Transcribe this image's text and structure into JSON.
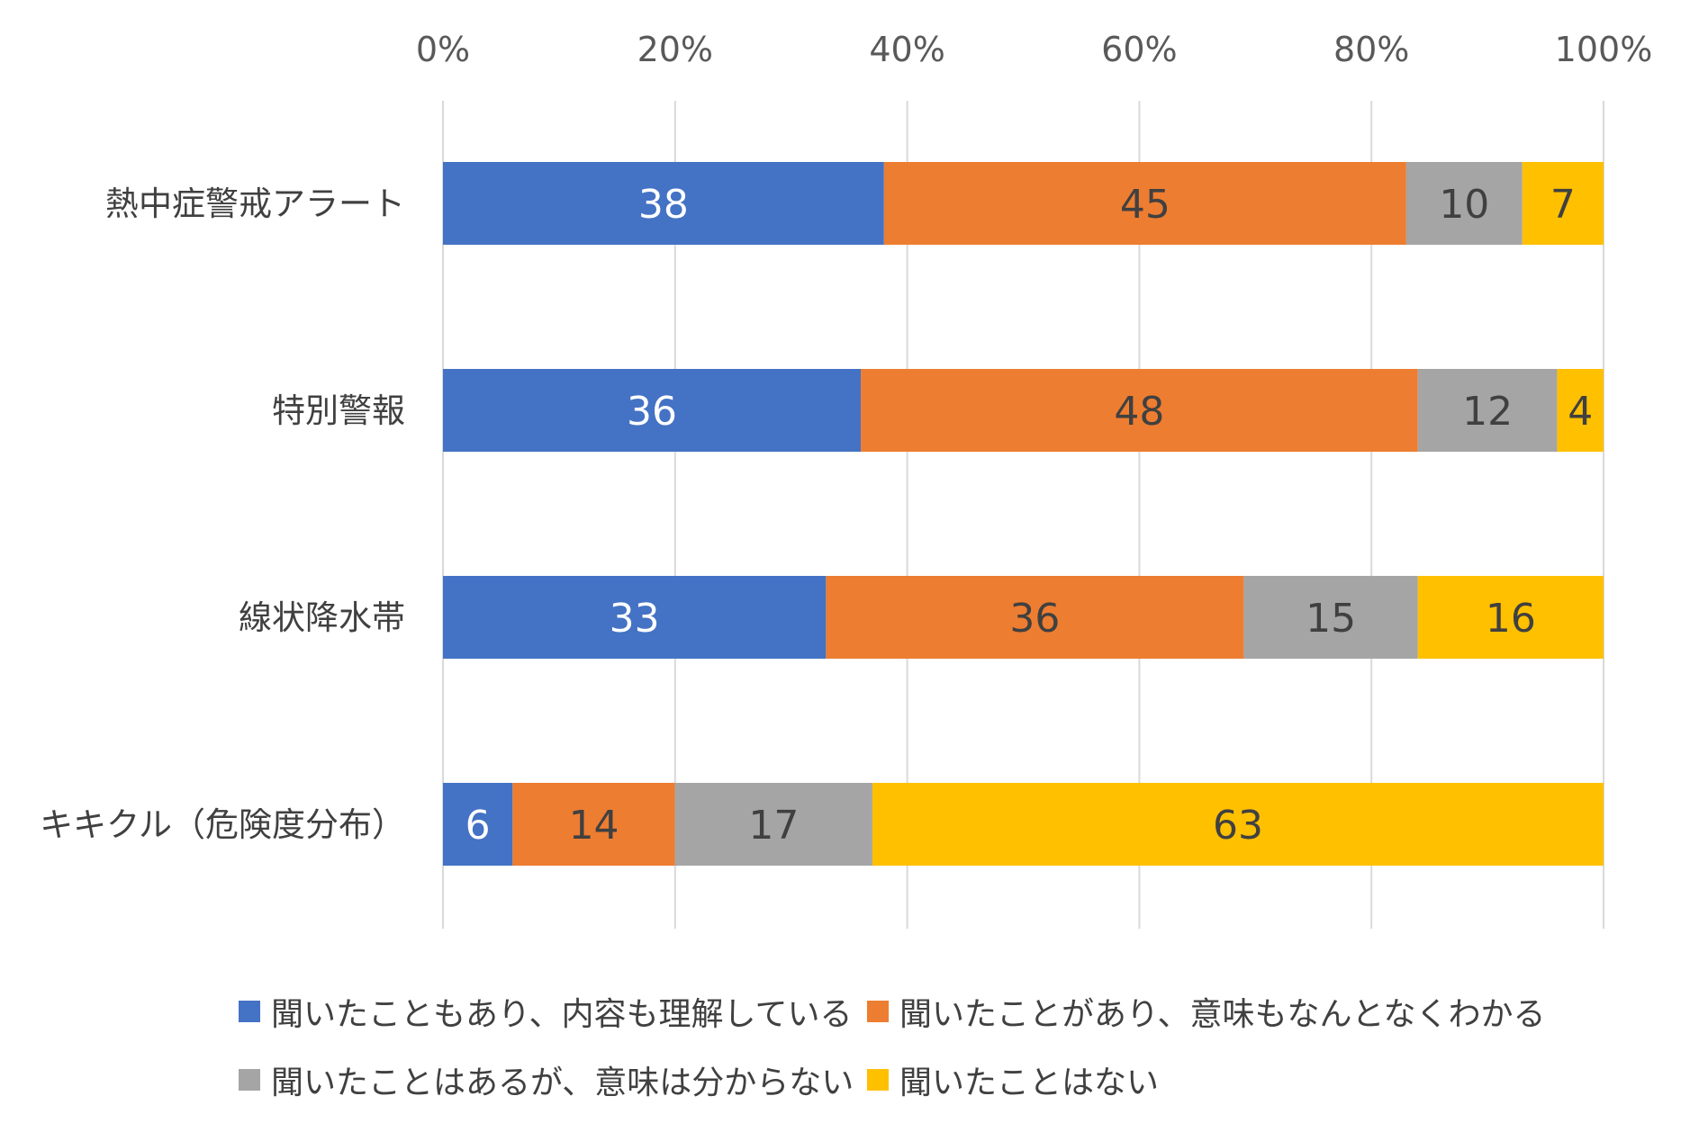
{
  "chart_data": {
    "type": "bar",
    "orientation": "horizontal",
    "stacked": "percent",
    "title": "",
    "xlabel": "",
    "ylabel": "",
    "xlim": [
      0,
      100
    ],
    "x_ticks": [
      "0%",
      "20%",
      "40%",
      "60%",
      "80%",
      "100%"
    ],
    "x_axis_position": "top",
    "grid": true,
    "legend_position": "bottom",
    "categories": [
      "熱中症警戒アラート",
      "特別警報",
      "線状降水帯",
      "キキクル（危険度分布）"
    ],
    "series": [
      {
        "name": "聞いたこともあり、内容も理解している",
        "color": "#4472C4",
        "label_color": "#ffffff",
        "values": [
          38,
          36,
          33,
          6
        ]
      },
      {
        "name": "聞いたことがあり、意味もなんとなくわかる",
        "color": "#ED7D31",
        "label_color": "#404040",
        "values": [
          45,
          48,
          36,
          14
        ]
      },
      {
        "name": "聞いたことはあるが、意味は分からない",
        "color": "#A5A5A5",
        "label_color": "#404040",
        "values": [
          10,
          12,
          15,
          17
        ]
      },
      {
        "name": "聞いたことはない",
        "color": "#FFC000",
        "label_color": "#404040",
        "values": [
          7,
          4,
          16,
          63
        ]
      }
    ]
  }
}
